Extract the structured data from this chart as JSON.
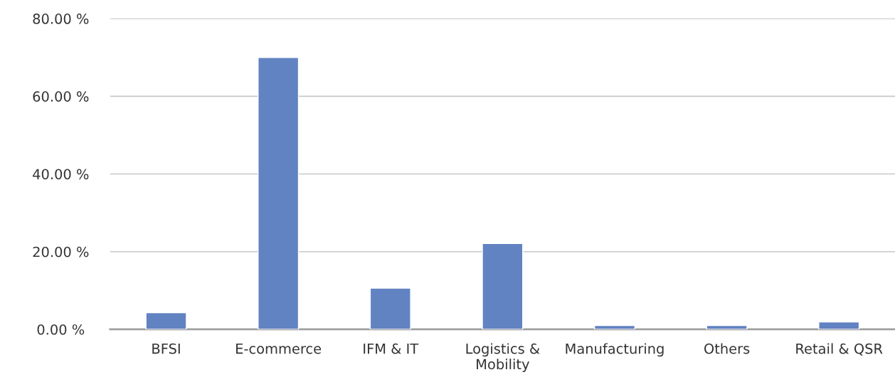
{
  "chart_data": {
    "type": "bar",
    "categories": [
      "BFSI",
      "E-commerce",
      "IFM & IT",
      "Logistics &\nMobility",
      "Manufacturing",
      "Others",
      "Retail & QSR"
    ],
    "values": [
      4.3,
      70,
      10.6,
      22.1,
      1.0,
      1.0,
      1.9
    ],
    "color": "#6283c2",
    "ylim": [
      0,
      80
    ],
    "yticks": [
      {
        "value": 0,
        "label": "0.00 %"
      },
      {
        "value": 20,
        "label": "20.00 %"
      },
      {
        "value": 40,
        "label": "40.00 %"
      },
      {
        "value": 60,
        "label": "60.00 %"
      },
      {
        "value": 80,
        "label": "80.00 %"
      }
    ],
    "grid": "y"
  }
}
